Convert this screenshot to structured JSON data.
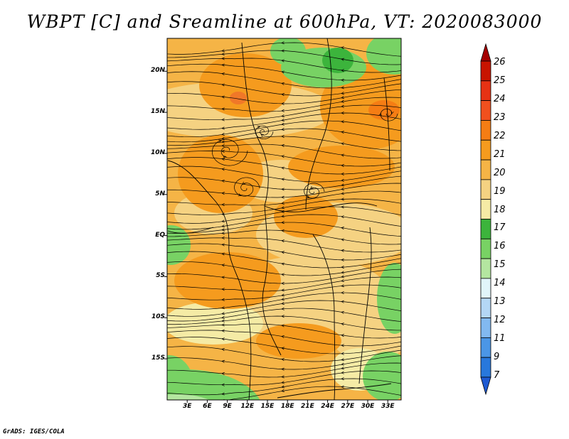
{
  "title": "WBPT [C] and Sreamline at 600hPa, VT: 2020083000",
  "credit": "GrADS: IGES/COLA",
  "map": {
    "variable": "Wet-bulb potential temperature",
    "units": "C",
    "level": "600hPa",
    "valid_time": "2020083000",
    "lat_range": [
      -20,
      24
    ],
    "lon_range": [
      0,
      35
    ],
    "lat_ticks": [
      {
        "value": 20,
        "label": "20N"
      },
      {
        "value": 15,
        "label": "15N"
      },
      {
        "value": 10,
        "label": "10N"
      },
      {
        "value": 5,
        "label": "5N"
      },
      {
        "value": 0,
        "label": "EQ"
      },
      {
        "value": -5,
        "label": "5S"
      },
      {
        "value": -10,
        "label": "10S"
      },
      {
        "value": -15,
        "label": "15S"
      }
    ],
    "lon_ticks": [
      {
        "value": 3,
        "label": "3E"
      },
      {
        "value": 6,
        "label": "6E"
      },
      {
        "value": 9,
        "label": "9E"
      },
      {
        "value": 12,
        "label": "12E"
      },
      {
        "value": 15,
        "label": "15E"
      },
      {
        "value": 18,
        "label": "18E"
      },
      {
        "value": 21,
        "label": "21E"
      },
      {
        "value": 24,
        "label": "24E"
      },
      {
        "value": 27,
        "label": "27E"
      },
      {
        "value": 30,
        "label": "30E"
      },
      {
        "value": 33,
        "label": "33E"
      }
    ]
  },
  "colorbar": {
    "labels": [
      "26",
      "25",
      "24",
      "23",
      "22",
      "21",
      "20",
      "19",
      "18",
      "17",
      "16",
      "15",
      "14",
      "13",
      "12",
      "11",
      "9",
      "7"
    ],
    "colors": [
      "#a50000",
      "#c81400",
      "#e63214",
      "#f0501e",
      "#f57d14",
      "#f59b1e",
      "#f5b446",
      "#f5d282",
      "#f5eba5",
      "#3cb43c",
      "#78d264",
      "#b4e6a0",
      "#e1f5fa",
      "#b4d7f5",
      "#82b9f0",
      "#4b96e6",
      "#2878dc",
      "#1e5ad2"
    ]
  },
  "colors": {
    "background": "#ffffff",
    "streamline": "#000000",
    "frame": "#000000"
  }
}
